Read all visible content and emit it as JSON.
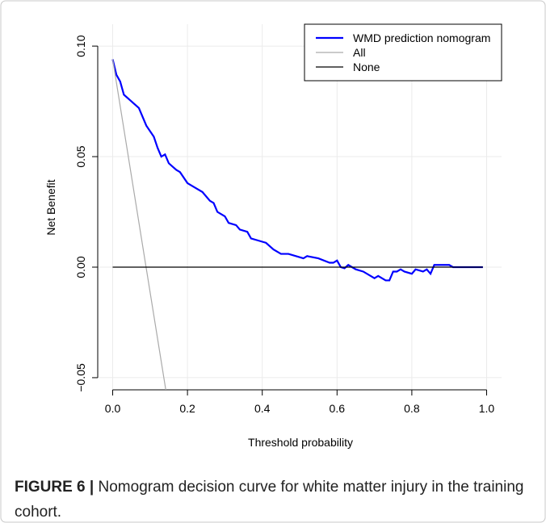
{
  "chart_data": {
    "type": "line",
    "xlabel": "Threshold probability",
    "ylabel": "Net Benefit",
    "xlim": [
      -0.04,
      1.04
    ],
    "ylim": [
      -0.0555,
      0.1099
    ],
    "xticks": [
      {
        "value": 0,
        "label": "0.0"
      },
      {
        "value": 0.2,
        "label": "0.2"
      },
      {
        "value": 0.4,
        "label": "0.4"
      },
      {
        "value": 0.6,
        "label": "0.6"
      },
      {
        "value": 0.8,
        "label": "0.8"
      },
      {
        "value": 1,
        "label": "1.0"
      }
    ],
    "yticks": [
      {
        "value": -0.05,
        "label": "−0.05"
      },
      {
        "value": 0,
        "label": "0.00"
      },
      {
        "value": 0.05,
        "label": "0.05"
      },
      {
        "value": 0.1,
        "label": "0.10"
      }
    ],
    "grid": true,
    "legend": "top-right",
    "series": [
      {
        "name": "WMD prediction nomogram",
        "color": "#0000ff",
        "x": [
          0,
          0.01,
          0.02,
          0.03,
          0.05,
          0.07,
          0.09,
          0.11,
          0.12,
          0.13,
          0.14,
          0.15,
          0.17,
          0.18,
          0.2,
          0.22,
          0.24,
          0.26,
          0.27,
          0.28,
          0.3,
          0.31,
          0.33,
          0.34,
          0.36,
          0.37,
          0.39,
          0.41,
          0.43,
          0.45,
          0.47,
          0.49,
          0.51,
          0.52,
          0.55,
          0.58,
          0.59,
          0.6,
          0.61,
          0.62,
          0.63,
          0.65,
          0.67,
          0.69,
          0.7,
          0.71,
          0.73,
          0.74,
          0.75,
          0.76,
          0.77,
          0.78,
          0.8,
          0.81,
          0.83,
          0.84,
          0.85,
          0.86,
          0.9,
          0.91,
          0.99
        ],
        "values": [
          0.094,
          0.087,
          0.084,
          0.078,
          0.075,
          0.072,
          0.064,
          0.059,
          0.054,
          0.05,
          0.051,
          0.047,
          0.044,
          0.043,
          0.038,
          0.036,
          0.034,
          0.03,
          0.029,
          0.025,
          0.023,
          0.02,
          0.019,
          0.017,
          0.016,
          0.013,
          0.012,
          0.011,
          0.008,
          0.006,
          0.006,
          0.005,
          0.004,
          0.005,
          0.004,
          0.002,
          0.002,
          0.003,
          0,
          -0.0005,
          0.001,
          -0.001,
          -0.002,
          -0.004,
          -0.005,
          -0.004,
          -0.006,
          -0.006,
          -0.002,
          -0.002,
          -0.001,
          -0.002,
          -0.003,
          -0.001,
          -0.002,
          -0.001,
          -0.003,
          0.001,
          0.001,
          0,
          0
        ]
      },
      {
        "name": "All",
        "color": "#aaaaaa",
        "x": [
          0,
          0.142
        ],
        "values": [
          0.094,
          -0.0555
        ]
      },
      {
        "name": "None",
        "color": "#000000",
        "x": [
          0,
          0.99
        ],
        "values": [
          0,
          0
        ]
      }
    ]
  },
  "caption": {
    "label": "FIGURE 6 |",
    "text": "Nomogram decision curve for white matter injury in the training cohort."
  }
}
